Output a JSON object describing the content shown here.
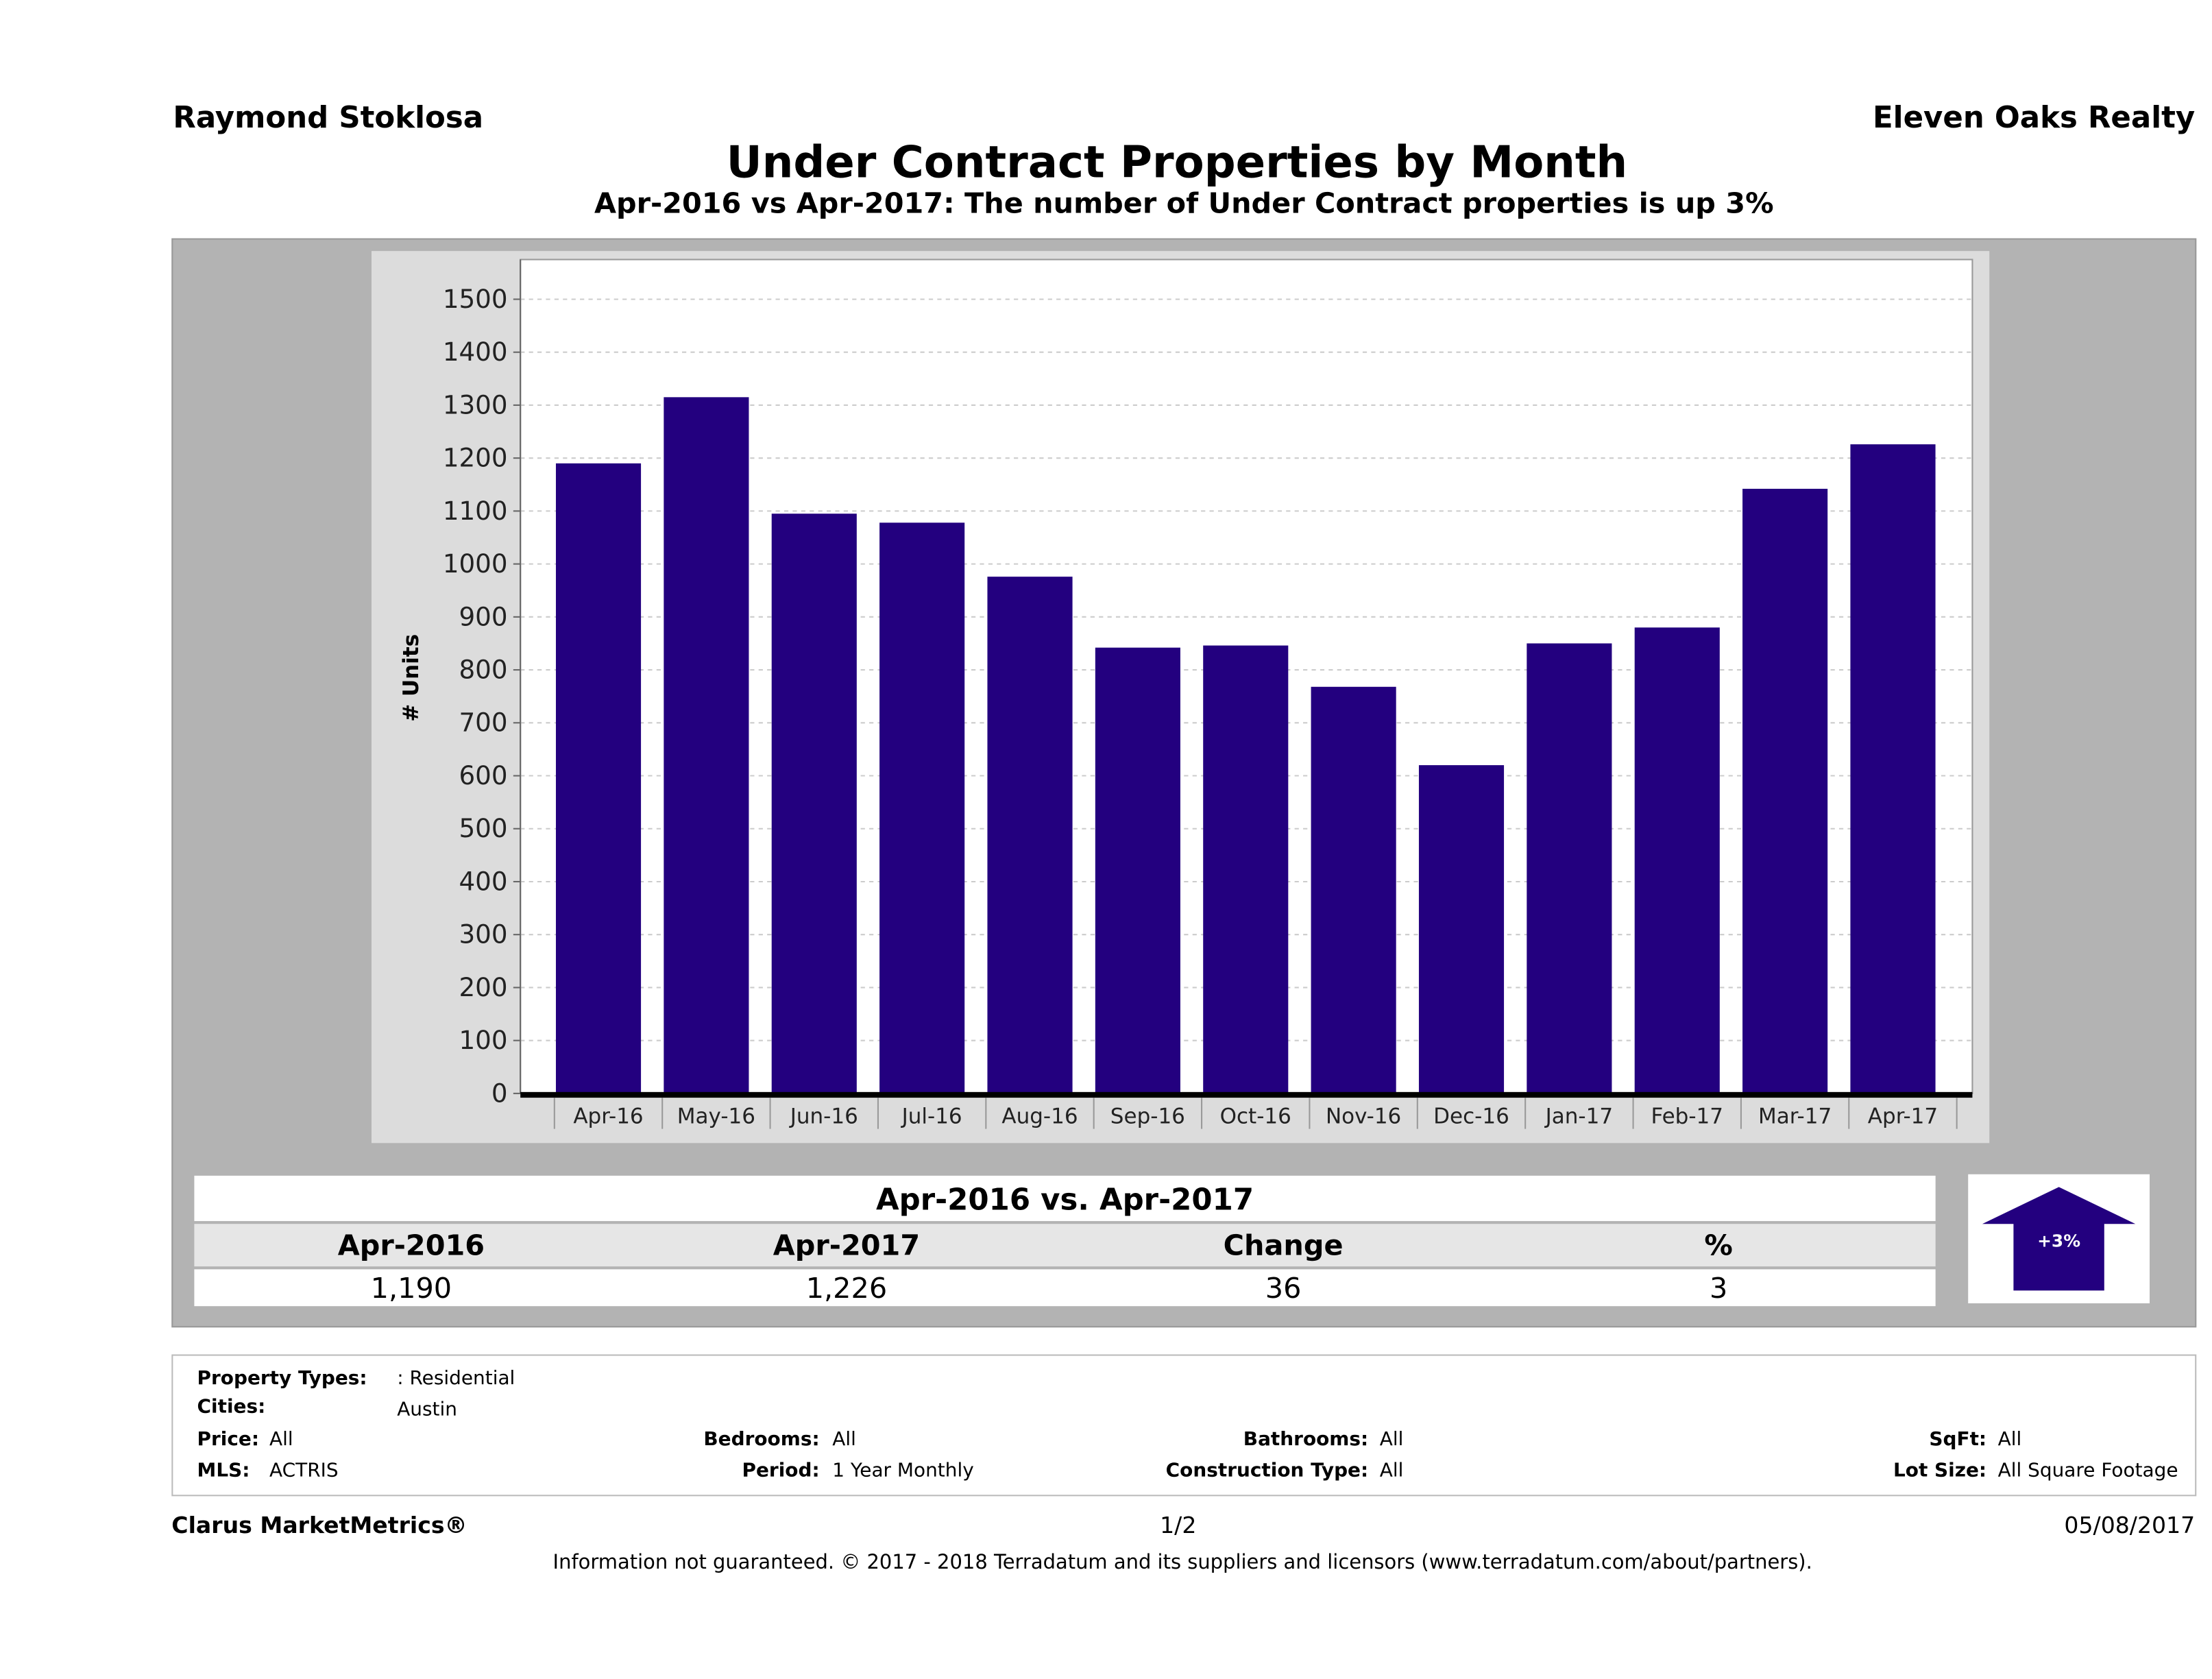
{
  "header": {
    "agent": "Raymond Stoklosa",
    "company": "Eleven Oaks Realty",
    "title": "Under Contract Properties by Month",
    "subtitle": "Apr-2016 vs Apr-2017: The number of Under Contract  properties is up 3%"
  },
  "chart_data": {
    "type": "bar",
    "title": "Under Contract Properties by Month",
    "ylabel": "# Units",
    "xlabel": "",
    "ylim": [
      0,
      1500
    ],
    "yticks": [
      0,
      100,
      200,
      300,
      400,
      500,
      600,
      700,
      800,
      900,
      1000,
      1100,
      1200,
      1300,
      1400,
      1500
    ],
    "grid": true,
    "bar_color": "#23007f",
    "categories": [
      "Apr-16",
      "May-16",
      "Jun-16",
      "Jul-16",
      "Aug-16",
      "Sep-16",
      "Oct-16",
      "Nov-16",
      "Dec-16",
      "Jan-17",
      "Feb-17",
      "Mar-17",
      "Apr-17"
    ],
    "values": [
      1190,
      1315,
      1095,
      1078,
      976,
      842,
      846,
      768,
      620,
      850,
      880,
      1142,
      1226
    ]
  },
  "summary": {
    "heading": "Apr-2016 vs. Apr-2017",
    "columns": [
      "Apr-2016",
      "Apr-2017",
      "Change",
      "%"
    ],
    "values": [
      "1,190",
      "1,226",
      "36",
      "3"
    ],
    "badge": "+3%",
    "direction": "up"
  },
  "filters": {
    "property_types": {
      "label": "Property Types:",
      "value": ": Residential"
    },
    "cities": {
      "label": "Cities:",
      "value": "Austin"
    },
    "price": {
      "label": "Price:",
      "value": "All"
    },
    "bedrooms": {
      "label": "Bedrooms:",
      "value": "All"
    },
    "bathrooms": {
      "label": "Bathrooms:",
      "value": "All"
    },
    "sqft": {
      "label": "SqFt:",
      "value": "All"
    },
    "mls": {
      "label": "MLS:",
      "value": "ACTRIS"
    },
    "period": {
      "label": "Period:",
      "value": "1 Year Monthly"
    },
    "construction": {
      "label": "Construction Type:",
      "value": "All"
    },
    "lot_size": {
      "label": "Lot Size:",
      "value": "All Square Footage"
    }
  },
  "footer": {
    "brand": "Clarus MarketMetrics®",
    "page": "1/2",
    "date": "05/08/2017",
    "disclaimer": "Information not guaranteed. © 2017 - 2018 Terradatum and its suppliers and licensors (www.terradatum.com/about/partners)."
  }
}
